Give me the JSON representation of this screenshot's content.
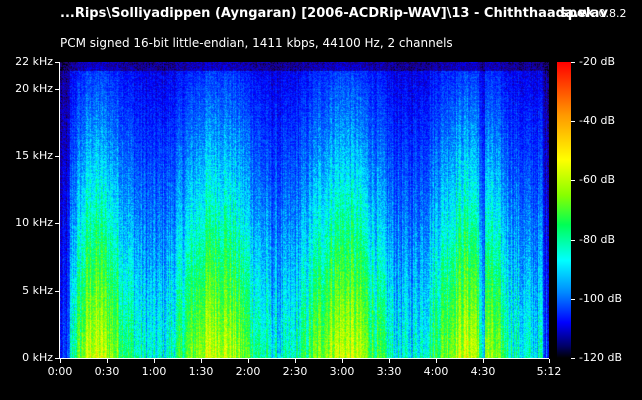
{
  "header": {
    "file_title": "...Rips\\Solliyadippen (Ayngaran) [2006-ACDRip-WAV]\\13 - Chiththaada.wav",
    "app_name": "spek",
    "app_version": "0.8.2",
    "stream_info": "PCM signed 16-bit little-endian, 1411 kbps, 44100 Hz, 2 channels"
  },
  "freq_axis": {
    "max_khz": 22,
    "ticks": [
      {
        "value": 0,
        "label": "0 kHz"
      },
      {
        "value": 5,
        "label": "5 kHz"
      },
      {
        "value": 10,
        "label": "10 kHz"
      },
      {
        "value": 15,
        "label": "15 kHz"
      },
      {
        "value": 20,
        "label": "20 kHz"
      },
      {
        "value": 22,
        "label": "22 kHz"
      }
    ]
  },
  "time_axis": {
    "max_seconds": 312,
    "ticks": [
      {
        "value": 0,
        "label": "0:00"
      },
      {
        "value": 30,
        "label": "0:30"
      },
      {
        "value": 60,
        "label": "1:00"
      },
      {
        "value": 90,
        "label": "1:30"
      },
      {
        "value": 120,
        "label": "2:00"
      },
      {
        "value": 150,
        "label": "2:30"
      },
      {
        "value": 180,
        "label": "3:00"
      },
      {
        "value": 210,
        "label": "3:30"
      },
      {
        "value": 240,
        "label": "4:00"
      },
      {
        "value": 270,
        "label": "4:30"
      },
      {
        "value": 312,
        "label": "5:12"
      }
    ]
  },
  "db_scale": {
    "min": -120,
    "max": -20,
    "ticks": [
      {
        "value": -20,
        "label": "-20 dB"
      },
      {
        "value": -40,
        "label": "-40 dB"
      },
      {
        "value": -60,
        "label": "-60 dB"
      },
      {
        "value": -80,
        "label": "-80 dB"
      },
      {
        "value": -100,
        "label": "-100 dB"
      },
      {
        "value": -120,
        "label": "-120 dB"
      }
    ]
  }
}
